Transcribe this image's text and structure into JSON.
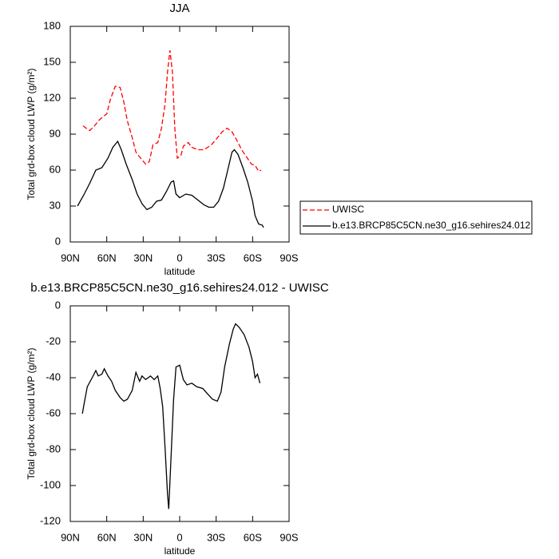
{
  "chart_data": [
    {
      "type": "line",
      "title": "JJA",
      "xlabel": "latitude",
      "ylabel": "Total grd-box cloud LWP (g/m²)",
      "xlim": [
        90,
        -90
      ],
      "ylim": [
        0,
        180
      ],
      "xticks": [
        {
          "value": 90,
          "label": "90N"
        },
        {
          "value": 60,
          "label": "60N"
        },
        {
          "value": 30,
          "label": "30N"
        },
        0,
        {
          "value": -30,
          "label": "30S"
        },
        {
          "value": -60,
          "label": "60S"
        },
        {
          "value": -90,
          "label": "90S"
        }
      ],
      "yticks": [
        0,
        30,
        60,
        90,
        120,
        150,
        180
      ],
      "legend": "outside-right",
      "series": [
        {
          "name": "UWISC",
          "color": "#ff0000",
          "dashed": true,
          "x": [
            79.5,
            77,
            74,
            70,
            66,
            60,
            57,
            53,
            49,
            46,
            43,
            39,
            36,
            33,
            28,
            25,
            22,
            18,
            15,
            12,
            10,
            8,
            6,
            4,
            2,
            -1,
            -3,
            -7,
            -10,
            -15,
            -20,
            -26,
            -31,
            -35,
            -39,
            -43,
            -47,
            -51,
            -55,
            -59,
            -62,
            -65,
            -67
          ],
          "values": [
            97,
            95,
            93,
            97,
            102,
            107,
            119,
            130,
            129,
            117,
            101,
            87,
            75,
            71,
            65,
            67,
            81,
            83,
            95,
            115,
            142,
            160,
            142,
            95,
            70,
            72,
            80,
            83,
            79,
            77,
            77,
            81,
            87,
            92,
            95,
            92,
            85,
            77,
            71,
            65,
            64,
            59,
            60
          ]
        },
        {
          "name": "b.e13.BRCP85C5CN.ne30_g16.sehires24.012",
          "color": "#000000",
          "dashed": false,
          "x": [
            84,
            79,
            74,
            69,
            64,
            59,
            55,
            51,
            48,
            44,
            39,
            35,
            31,
            27,
            23,
            19,
            15,
            11,
            7,
            5,
            3,
            0,
            -5,
            -10,
            -15,
            -20,
            -24,
            -28,
            -32,
            -36,
            -40,
            -43,
            -45,
            -48,
            -52,
            -56,
            -60,
            -62,
            -65,
            -68,
            -69
          ],
          "values": [
            30,
            39,
            49,
            60,
            62,
            70,
            79,
            84,
            77,
            65,
            52,
            40,
            32,
            27,
            29,
            34,
            35,
            42,
            50,
            51,
            40,
            37,
            40,
            39,
            35,
            31,
            29,
            29,
            34,
            45,
            62,
            75,
            77,
            73,
            62,
            50,
            34,
            22,
            15,
            14,
            12
          ]
        }
      ]
    },
    {
      "type": "line",
      "title": "b.e13.BRCP85C5CN.ne30_g16.sehires24.012 - UWISC",
      "xlabel": "latitude",
      "ylabel": "Total grd-box cloud LWP (g/m²)",
      "xlim": [
        90,
        -90
      ],
      "ylim": [
        -120,
        0
      ],
      "xticks": [
        {
          "value": 90,
          "label": "90N"
        },
        {
          "value": 60,
          "label": "60N"
        },
        {
          "value": 30,
          "label": "30N"
        },
        0,
        {
          "value": -30,
          "label": "30S"
        },
        {
          "value": -60,
          "label": "60S"
        },
        {
          "value": -90,
          "label": "90S"
        }
      ],
      "yticks": [
        -120,
        -100,
        -80,
        -60,
        -40,
        -20,
        0
      ],
      "series": [
        {
          "color": "#000000",
          "dashed": false,
          "x": [
            80,
            79,
            76,
            72,
            69,
            67,
            64,
            62,
            59,
            56,
            53,
            49,
            46,
            43,
            39,
            36,
            33,
            31,
            28,
            24,
            21,
            18,
            16,
            14,
            12,
            10,
            9,
            7,
            5,
            3,
            0,
            -3,
            -6,
            -10,
            -14,
            -19,
            -23,
            -27,
            -31,
            -34,
            -37,
            -41,
            -44,
            -46,
            -49,
            -53,
            -57,
            -60,
            -62,
            -64,
            -66
          ],
          "values": [
            -60,
            -56,
            -45,
            -40,
            -36,
            -39,
            -38,
            -35,
            -39,
            -42,
            -47,
            -51,
            -53,
            -52,
            -47,
            -37,
            -42,
            -39,
            -41,
            -39,
            -41,
            -39,
            -46,
            -56,
            -79,
            -105,
            -113,
            -83,
            -52,
            -34,
            -33,
            -41,
            -44,
            -43,
            -45,
            -46,
            -49,
            -52,
            -53,
            -48,
            -34,
            -21,
            -13,
            -10,
            -12,
            -16,
            -23,
            -31,
            -40,
            -38,
            -43
          ]
        }
      ]
    }
  ]
}
